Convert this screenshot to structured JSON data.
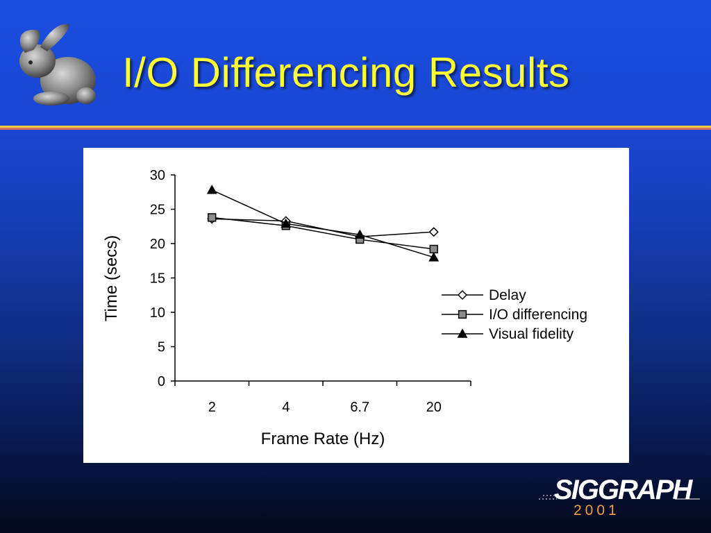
{
  "slide": {
    "title": "I/O Differencing Results",
    "logo_text": "SIGGRAPH",
    "logo_year": "2001"
  },
  "colors": {
    "title": "#ffff33",
    "rule_top": "#e8d040",
    "rule_bottom": "#d8705a",
    "logo_year": "#f0a040"
  },
  "icons": {
    "mascot": "bunny-icon",
    "logo": "siggraph-logo-icon"
  },
  "chart_data": {
    "type": "line",
    "title": "",
    "xlabel": "Frame Rate (Hz)",
    "ylabel": "Time (secs)",
    "categories": [
      "2",
      "4",
      "6.7",
      "20"
    ],
    "ylim": [
      0,
      30
    ],
    "yticks": [
      0,
      5,
      10,
      15,
      20,
      25,
      30
    ],
    "grid": false,
    "legend_position": "right",
    "series": [
      {
        "name": "Delay",
        "marker": "diamond-open",
        "values": [
          23.6,
          23.3,
          21.0,
          21.7
        ]
      },
      {
        "name": "I/O differencing",
        "marker": "square-gray",
        "values": [
          23.8,
          22.6,
          20.6,
          19.2
        ]
      },
      {
        "name": "Visual fidelity",
        "marker": "triangle-filled",
        "values": [
          27.8,
          22.9,
          21.3,
          18.0
        ]
      }
    ]
  }
}
